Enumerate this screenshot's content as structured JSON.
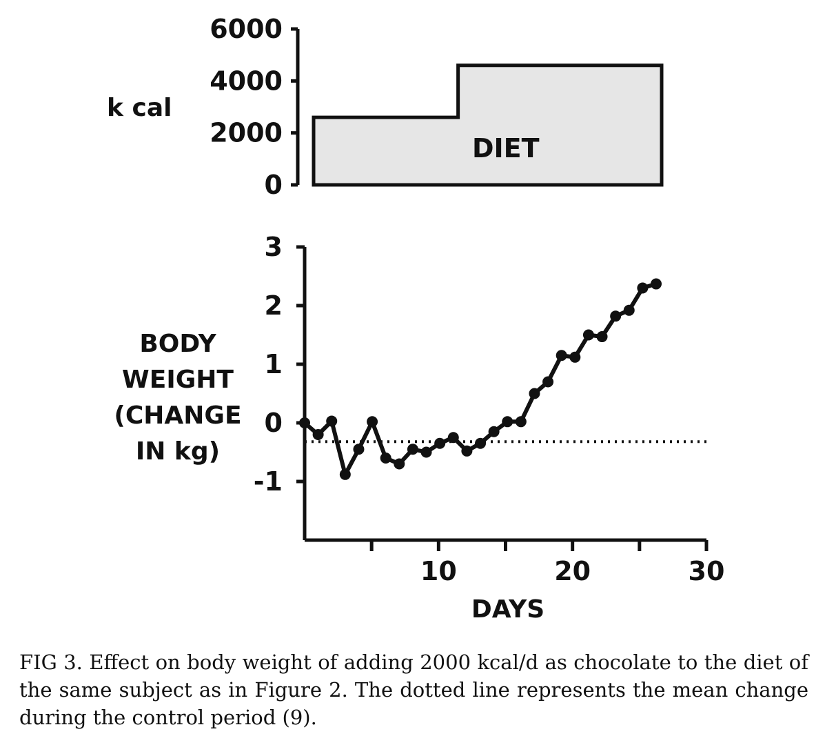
{
  "chart_data": [
    {
      "type": "area",
      "ylabel": "k cal",
      "yticks": [
        0,
        2000,
        4000,
        6000
      ],
      "ylim": [
        0,
        6000
      ],
      "xlim": [
        0,
        30
      ],
      "annotation": "DIET",
      "steps": [
        {
          "x_start": 0,
          "x_end": 11,
          "kcal": 2600
        },
        {
          "x_start": 11,
          "x_end": 26.5,
          "kcal": 4600
        }
      ]
    },
    {
      "type": "line",
      "ylabel_lines": [
        "BODY",
        "WEIGHT",
        "(CHANGE",
        "IN kg)"
      ],
      "xlabel": "DAYS",
      "yticks": [
        -1,
        0,
        1,
        2,
        3
      ],
      "ytick_labels": [
        "-1",
        "0",
        "1",
        "2",
        "3"
      ],
      "ylim": [
        -2,
        3
      ],
      "xticks": [
        5,
        10,
        15,
        20,
        25,
        30
      ],
      "xtick_labels": [
        "",
        "10",
        "",
        "20",
        "",
        "30"
      ],
      "xlim": [
        0,
        30
      ],
      "reference_line": -0.32,
      "series": [
        {
          "x": [
            0,
            1,
            2,
            3,
            4,
            5,
            6,
            7,
            8,
            9,
            10,
            11,
            12,
            13,
            14,
            15,
            16,
            17,
            18,
            19,
            20,
            21,
            22,
            23,
            24,
            25,
            26
          ],
          "y": [
            0,
            -0.2,
            0.03,
            -0.88,
            -0.45,
            0.02,
            -0.6,
            -0.7,
            -0.45,
            -0.5,
            -0.35,
            -0.25,
            -0.48,
            -0.35,
            -0.15,
            0.02,
            0.02,
            0.5,
            0.7,
            1.15,
            1.12,
            1.5,
            1.47,
            1.82,
            1.92,
            2.3,
            2.37
          ]
        }
      ]
    }
  ],
  "caption": "FIG 3. Effect on body weight of adding 2000 kcal/d as chocolate to the diet of the same subject as in Figure 2. The dotted line represents the mean change during the control period (9)."
}
